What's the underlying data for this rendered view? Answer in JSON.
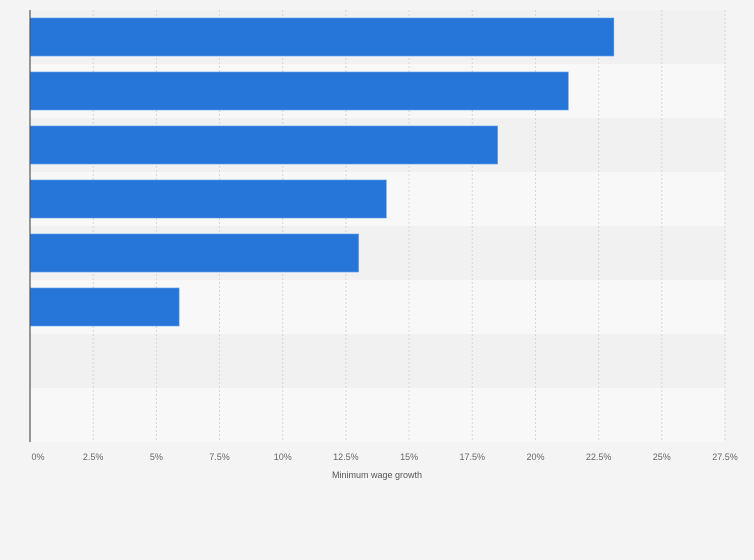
{
  "chart_data": {
    "type": "bar",
    "orientation": "horizontal",
    "title": "",
    "xlabel": "Minimum wage growth",
    "ylabel": "",
    "categories": [
      "",
      "",
      "",
      "",
      "",
      "",
      "",
      ""
    ],
    "values": [
      23.1,
      21.3,
      18.5,
      14.1,
      13.0,
      5.9,
      null,
      null
    ],
    "xlim": [
      0,
      27.5
    ],
    "xticks": [
      0,
      2.5,
      5,
      7.5,
      10,
      12.5,
      15,
      17.5,
      20,
      22.5,
      25,
      27.5
    ],
    "xtick_labels": [
      "0%",
      "2.5%",
      "5%",
      "7.5%",
      "10%",
      "12.5%",
      "15%",
      "17.5%",
      "20%",
      "22.5%",
      "25%",
      "27.5%"
    ],
    "grid": true,
    "bar_color": "#2675d9"
  }
}
